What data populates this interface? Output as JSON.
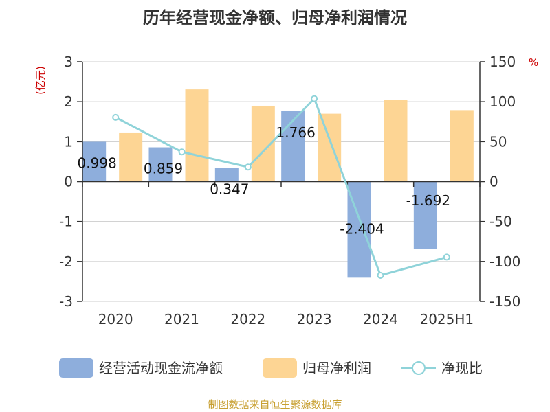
{
  "chart_data": {
    "type": "bar",
    "title": "历年经营现金净额、归母净利润情况",
    "left_axis_unit": "(亿元)",
    "right_axis_unit": "%",
    "categories": [
      "2020",
      "2021",
      "2022",
      "2023",
      "2024",
      "2025H1"
    ],
    "left_ylim": [
      -3,
      3
    ],
    "left_ticks": [
      "3",
      "2",
      "1",
      "0",
      "-1",
      "-2",
      "-3"
    ],
    "right_ylim": [
      -150,
      150
    ],
    "right_ticks": [
      "150",
      "100",
      "50",
      "0",
      "-50",
      "-100",
      "-150"
    ],
    "grid": true,
    "legend_position": "bottom",
    "series": [
      {
        "name": "经营活动现金流净额",
        "kind": "bar",
        "axis": "left",
        "color": "#8eaedc",
        "values": [
          0.998,
          0.859,
          0.347,
          1.766,
          -2.404,
          -1.692
        ],
        "labels": [
          "0.998",
          "0.859",
          "0.347",
          "1.766",
          "-2.404",
          "-1.692"
        ]
      },
      {
        "name": "归母净利润",
        "kind": "bar",
        "axis": "left",
        "color": "#fdd594",
        "values": [
          1.23,
          2.31,
          1.9,
          1.7,
          2.05,
          1.79
        ]
      },
      {
        "name": "净现比",
        "kind": "line",
        "axis": "right",
        "color": "#8fd3d9",
        "values": [
          80.5,
          37.2,
          18.3,
          103.9,
          -117.3,
          -94.5
        ]
      }
    ],
    "source": "制图数据来自恒生聚源数据库"
  }
}
